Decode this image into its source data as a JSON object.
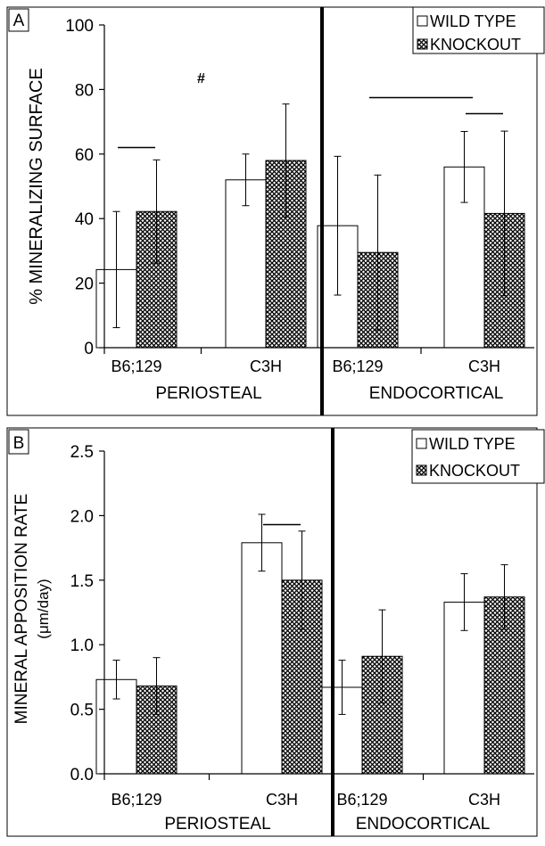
{
  "chart_data": [
    {
      "type": "bar",
      "panel_label": "A",
      "ylabel": "% MINERALIZING SURFACE",
      "ylim": [
        0,
        100
      ],
      "yticks": [
        0,
        20,
        40,
        60,
        80,
        100
      ],
      "ytick_labels": [
        "0",
        "20",
        "40",
        "60",
        "80",
        "100"
      ],
      "grid": false,
      "legend_position": "top-right",
      "categories": [
        "B6;129",
        "C3H",
        "B6;129",
        "C3H"
      ],
      "groups": [
        "PERIOSTEAL",
        "ENDOCORTICAL"
      ],
      "series": [
        {
          "name": "WILD TYPE",
          "pattern": "open",
          "values": [
            24.2,
            52.0,
            37.8,
            56.0
          ],
          "error": [
            18,
            8,
            21.5,
            11
          ]
        },
        {
          "name": "KNOCKOUT",
          "pattern": "crosshatch",
          "values": [
            42.2,
            58.0,
            29.5,
            41.6
          ],
          "error": [
            16,
            17.5,
            24,
            25.5
          ]
        }
      ],
      "annotations": [
        {
          "type": "line",
          "category_index": 0,
          "y": 62
        },
        {
          "type": "line",
          "category_index": 2.5,
          "y": 77.5
        },
        {
          "type": "line",
          "category_index": 3,
          "y": 72.5
        },
        {
          "type": "text",
          "text": "#",
          "category_index": 0.5,
          "y": 82
        }
      ]
    },
    {
      "type": "bar",
      "panel_label": "B",
      "ylabel": "MINERAL APPOSITION RATE",
      "ylabel_line2": "(μm/day)",
      "ylim": [
        0,
        2.5
      ],
      "yticks": [
        0,
        0.5,
        1.0,
        1.5,
        2.0,
        2.5
      ],
      "ytick_labels": [
        "0.0",
        "0.5",
        "1.0",
        "1.5",
        "2.0",
        "2.5"
      ],
      "grid": false,
      "legend_position": "top-right",
      "categories": [
        "B6;129",
        "C3H",
        "B6;129",
        "C3H"
      ],
      "groups": [
        "PERIOSTEAL",
        "ENDOCORTICAL"
      ],
      "series": [
        {
          "name": "WILD TYPE",
          "pattern": "open",
          "values": [
            0.73,
            1.79,
            0.67,
            1.33
          ],
          "error": [
            0.15,
            0.22,
            0.21,
            0.22
          ]
        },
        {
          "name": "KNOCKOUT",
          "pattern": "crosshatch",
          "values": [
            0.68,
            1.5,
            0.91,
            1.37
          ],
          "error": [
            0.22,
            0.38,
            0.36,
            0.25
          ]
        }
      ],
      "annotations": [
        {
          "type": "line",
          "category_index": 1,
          "y": 1.93
        }
      ]
    }
  ]
}
